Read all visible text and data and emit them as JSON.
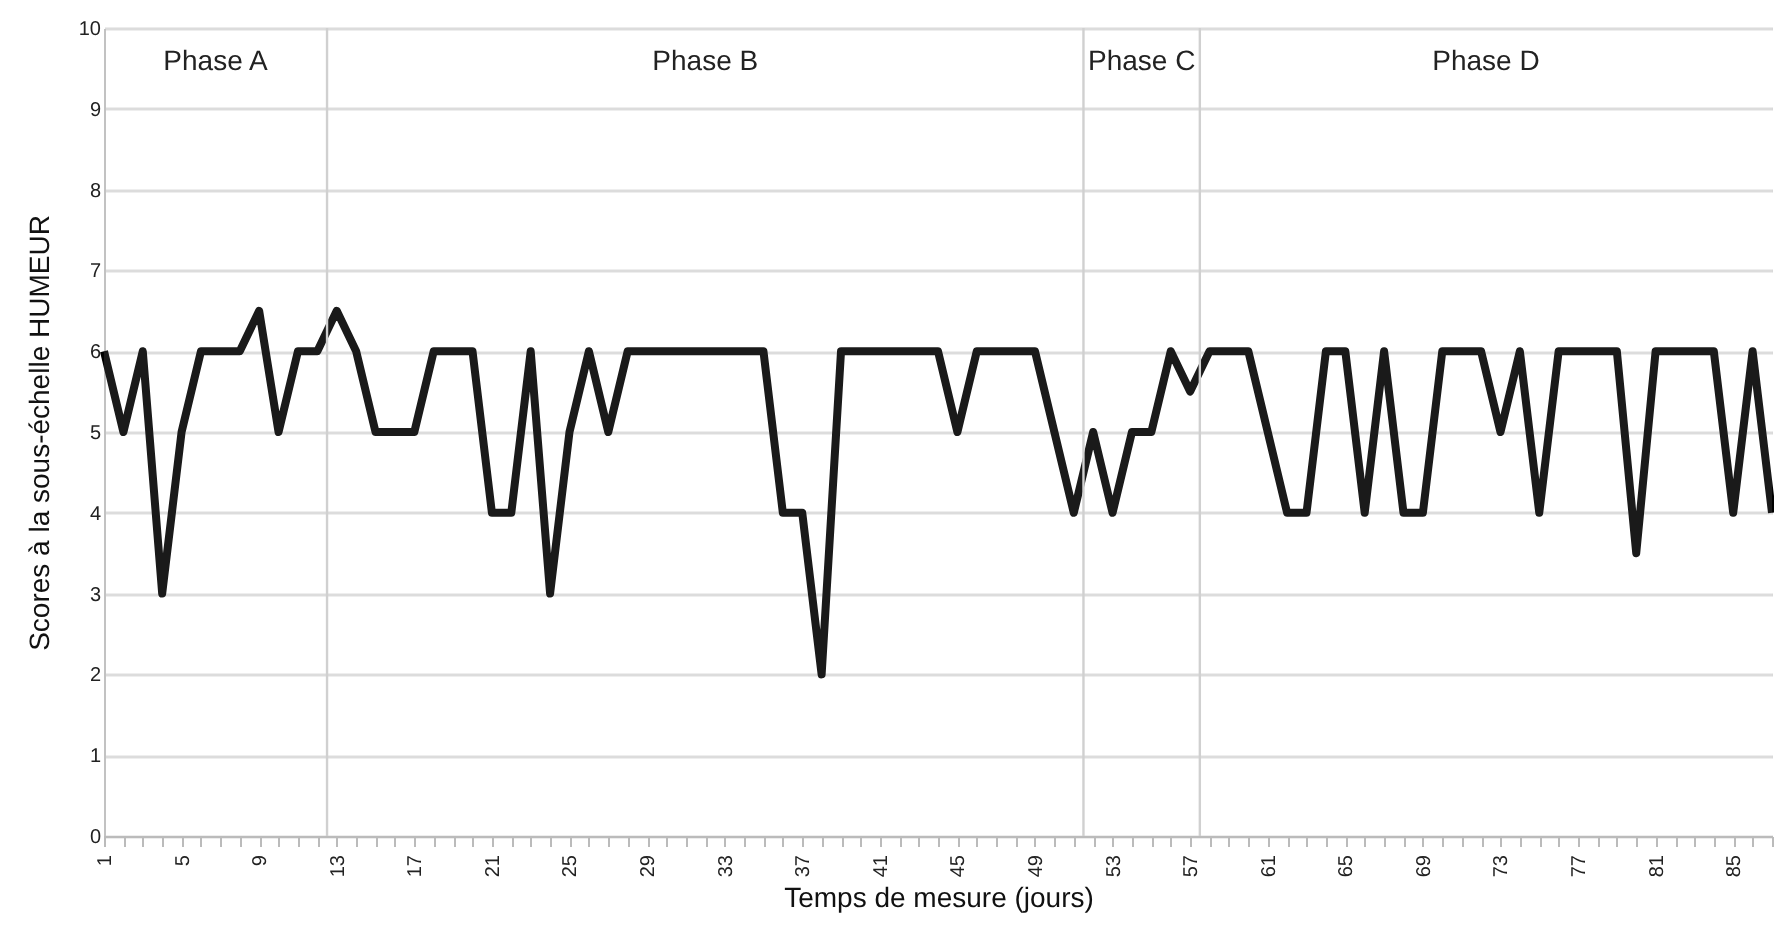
{
  "chart_data": {
    "type": "line",
    "xlabel": "Temps de mesure (jours)",
    "ylabel": "Scores à la sous-échelle HUMEUR",
    "x": [
      1,
      2,
      3,
      4,
      5,
      6,
      7,
      8,
      9,
      10,
      11,
      12,
      13,
      14,
      15,
      16,
      17,
      18,
      19,
      20,
      21,
      22,
      23,
      24,
      25,
      26,
      27,
      28,
      29,
      30,
      31,
      32,
      33,
      34,
      35,
      36,
      37,
      38,
      39,
      40,
      41,
      42,
      43,
      44,
      45,
      46,
      47,
      48,
      49,
      50,
      51,
      52,
      53,
      54,
      55,
      56,
      57,
      58,
      59,
      60,
      61,
      62,
      63,
      64,
      65,
      66,
      67,
      68,
      69,
      70,
      71,
      72,
      73,
      74,
      75,
      76,
      77,
      78,
      79,
      80,
      81,
      82,
      83,
      84,
      85,
      86,
      87
    ],
    "series": [
      {
        "color": "#000000",
        "values": [
          6,
          5,
          6,
          3,
          5,
          6,
          6,
          6,
          6.5,
          5,
          6,
          6,
          6.5,
          6,
          5,
          5,
          5,
          6,
          6,
          6,
          4,
          4,
          6,
          3,
          5,
          6,
          5,
          6,
          6,
          6,
          6,
          6,
          6,
          6,
          6,
          4,
          4,
          2,
          6,
          6,
          6,
          6,
          6,
          6,
          5,
          6,
          6,
          6,
          6,
          5,
          4,
          5,
          4,
          5,
          5,
          6,
          5.5,
          6,
          6,
          6,
          5,
          4,
          4,
          6,
          6,
          4,
          6,
          4,
          4,
          6,
          6,
          6,
          5,
          6,
          4,
          6,
          6,
          6,
          6,
          3.5,
          6,
          6,
          6,
          6,
          4,
          6,
          4
        ]
      }
    ],
    "xlim": [
      1,
      87
    ],
    "xticks": [
      1,
      {
        "value": 2,
        "label": null
      },
      {
        "value": 3,
        "label": null
      },
      {
        "value": 4,
        "label": null
      },
      5,
      {
        "value": 6,
        "label": null
      },
      {
        "value": 7,
        "label": null
      },
      {
        "value": 8,
        "label": null
      },
      9,
      {
        "value": 10,
        "label": null
      },
      {
        "value": 11,
        "label": null
      },
      {
        "value": 12,
        "label": null
      },
      13,
      {
        "value": 14,
        "label": null
      },
      {
        "value": 15,
        "label": null
      },
      {
        "value": 16,
        "label": null
      },
      17,
      {
        "value": 18,
        "label": null
      },
      {
        "value": 19,
        "label": null
      },
      {
        "value": 20,
        "label": null
      },
      21,
      {
        "value": 22,
        "label": null
      },
      {
        "value": 23,
        "label": null
      },
      {
        "value": 24,
        "label": null
      },
      25,
      {
        "value": 26,
        "label": null
      },
      {
        "value": 27,
        "label": null
      },
      {
        "value": 28,
        "label": null
      },
      29,
      {
        "value": 30,
        "label": null
      },
      {
        "value": 31,
        "label": null
      },
      {
        "value": 32,
        "label": null
      },
      33,
      {
        "value": 34,
        "label": null
      },
      {
        "value": 35,
        "label": null
      },
      {
        "value": 36,
        "label": null
      },
      37,
      {
        "value": 38,
        "label": null
      },
      {
        "value": 39,
        "label": null
      },
      {
        "value": 40,
        "label": null
      },
      41,
      {
        "value": 42,
        "label": null
      },
      {
        "value": 43,
        "label": null
      },
      {
        "value": 44,
        "label": null
      },
      45,
      {
        "value": 46,
        "label": null
      },
      {
        "value": 47,
        "label": null
      },
      {
        "value": 48,
        "label": null
      },
      49,
      {
        "value": 50,
        "label": null
      },
      {
        "value": 51,
        "label": null
      },
      {
        "value": 52,
        "label": null
      },
      53,
      {
        "value": 54,
        "label": null
      },
      {
        "value": 55,
        "label": null
      },
      {
        "value": 56,
        "label": null
      },
      57,
      {
        "value": 58,
        "label": null
      },
      {
        "value": 59,
        "label": null
      },
      {
        "value": 60,
        "label": null
      },
      61,
      {
        "value": 62,
        "label": null
      },
      {
        "value": 63,
        "label": null
      },
      {
        "value": 64,
        "label": null
      },
      65,
      {
        "value": 66,
        "label": null
      },
      {
        "value": 67,
        "label": null
      },
      {
        "value": 68,
        "label": null
      },
      69,
      {
        "value": 70,
        "label": null
      },
      {
        "value": 71,
        "label": null
      },
      {
        "value": 72,
        "label": null
      },
      73,
      {
        "value": 74,
        "label": null
      },
      {
        "value": 75,
        "label": null
      },
      {
        "value": 76,
        "label": null
      },
      77,
      {
        "value": 78,
        "label": null
      },
      {
        "value": 79,
        "label": null
      },
      {
        "value": 80,
        "label": null
      },
      81,
      {
        "value": 82,
        "label": null
      },
      {
        "value": 83,
        "label": null
      },
      {
        "value": 84,
        "label": null
      },
      85,
      {
        "value": 86,
        "label": null
      },
      {
        "value": 87,
        "label": null
      }
    ],
    "ylim": [
      0,
      10
    ],
    "yticks": [
      0,
      1,
      2,
      3,
      4,
      5,
      6,
      7,
      8,
      9,
      10
    ],
    "grid": "y",
    "marker": "none",
    "line_style": "solid",
    "ref_lines": [
      {
        "axis": "x",
        "value": 12.5,
        "color": "#d0d0d0"
      },
      {
        "axis": "x",
        "value": 51.5,
        "color": "#d0d0d0"
      },
      {
        "axis": "x",
        "value": 57.5,
        "color": "#d0d0d0"
      }
    ],
    "bands": [
      {
        "axis": "x",
        "from": 1,
        "to": 12.5,
        "label": "Phase A",
        "color": "#ffffff"
      },
      {
        "axis": "x",
        "from": 12.5,
        "to": 51.5,
        "label": "Phase B",
        "color": "#ffffff"
      },
      {
        "axis": "x",
        "from": 51.5,
        "to": 57.5,
        "label": "Phase C",
        "color": "#ffffff"
      },
      {
        "axis": "x",
        "from": 57.5,
        "to": 87,
        "label": "Phase D",
        "color": "#ffffff"
      }
    ]
  }
}
